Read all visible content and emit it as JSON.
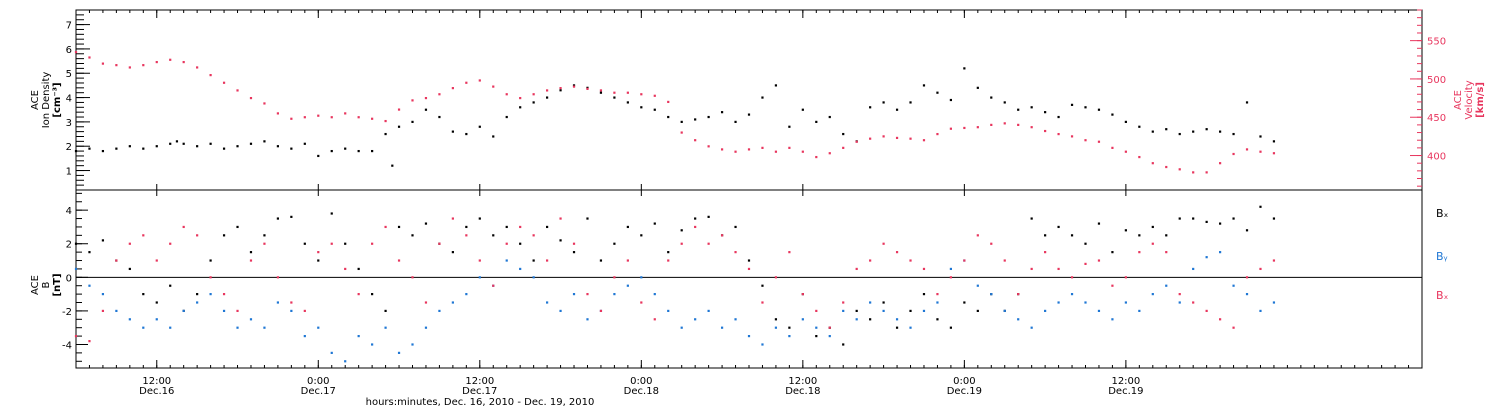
{
  "colors": {
    "axis": "#000000",
    "velocity": "#e8365e",
    "bx": "#000000",
    "by": "#1f77d4",
    "bz": "#e8365e"
  },
  "chart_data": [
    {
      "type": "scatter",
      "panel": "top",
      "left_axis_label_lines": [
        "ACE",
        "Ion Density",
        "[cm⁻³]"
      ],
      "right_axis_label_lines": [
        "ACE",
        "Velocity",
        "[km/s]"
      ],
      "left_ylim": [
        0.2,
        7.6
      ],
      "left_yticks": [
        1,
        2,
        3,
        4,
        5,
        6,
        7
      ],
      "right_ylim": [
        355,
        590
      ],
      "right_yticks": [
        400,
        450,
        500,
        550
      ],
      "grid": false,
      "series": [
        {
          "name": "Ion Density",
          "axis": "left",
          "color_key": "axis",
          "x": [
            0,
            1,
            2,
            3,
            4,
            5,
            6,
            7,
            7.5,
            8,
            9,
            10,
            11,
            12,
            13,
            14,
            15,
            16,
            17,
            18,
            19,
            20,
            21,
            22,
            23,
            23.5,
            24,
            25,
            26,
            27,
            28,
            29,
            30,
            31,
            32,
            33,
            34,
            35,
            36,
            37,
            38,
            39,
            40,
            41,
            42,
            43,
            44,
            45,
            46,
            47,
            48,
            49,
            50,
            51,
            52,
            53,
            54,
            55,
            56,
            57,
            58,
            59,
            60,
            61,
            62,
            63,
            64,
            65,
            66,
            67,
            68,
            69,
            70,
            71,
            72,
            73,
            74,
            75,
            76,
            77,
            78,
            79,
            80,
            81,
            82,
            83,
            84,
            85,
            86,
            87,
            88,
            89
          ],
          "y": [
            1.8,
            1.9,
            1.8,
            1.9,
            2.0,
            1.9,
            2.0,
            2.1,
            2.2,
            2.1,
            2.0,
            2.1,
            1.9,
            2.0,
            2.1,
            2.2,
            2.0,
            1.9,
            2.1,
            1.6,
            1.8,
            1.9,
            1.8,
            1.8,
            2.5,
            1.2,
            2.8,
            3.0,
            3.5,
            3.2,
            2.6,
            2.5,
            2.8,
            2.4,
            3.2,
            3.6,
            3.8,
            4.0,
            4.3,
            4.5,
            4.4,
            4.2,
            4.0,
            3.8,
            3.6,
            3.5,
            3.2,
            3.0,
            3.1,
            3.2,
            3.4,
            3.0,
            3.3,
            4.0,
            4.5,
            2.8,
            3.5,
            3.0,
            3.2,
            2.5,
            2.2,
            3.6,
            3.8,
            3.5,
            3.8,
            4.5,
            4.2,
            3.9,
            5.2,
            4.4,
            4.0,
            3.8,
            3.5,
            3.6,
            3.4,
            3.2,
            3.7,
            3.6,
            3.5,
            3.3,
            3.0,
            2.8,
            2.6,
            2.7,
            2.5,
            2.6,
            2.7,
            2.6,
            2.5,
            3.8,
            2.4,
            2.2
          ]
        },
        {
          "name": "Velocity",
          "axis": "right",
          "color_key": "velocity",
          "x": [
            0,
            1,
            2,
            3,
            4,
            5,
            6,
            7,
            8,
            9,
            10,
            11,
            12,
            13,
            14,
            15,
            16,
            17,
            18,
            19,
            20,
            21,
            22,
            23,
            24,
            25,
            26,
            27,
            28,
            29,
            30,
            31,
            32,
            33,
            34,
            35,
            36,
            37,
            38,
            39,
            40,
            41,
            42,
            43,
            44,
            45,
            46,
            47,
            48,
            49,
            50,
            51,
            52,
            53,
            54,
            55,
            56,
            57,
            58,
            59,
            60,
            61,
            62,
            63,
            64,
            65,
            66,
            67,
            68,
            69,
            70,
            71,
            72,
            73,
            74,
            75,
            76,
            77,
            78,
            79,
            80,
            81,
            82,
            83,
            84,
            85,
            86,
            87,
            88,
            89
          ],
          "y": [
            535,
            528,
            520,
            518,
            515,
            518,
            522,
            525,
            522,
            515,
            505,
            495,
            485,
            475,
            468,
            455,
            448,
            450,
            452,
            450,
            455,
            450,
            448,
            445,
            460,
            472,
            475,
            480,
            488,
            495,
            498,
            490,
            480,
            475,
            480,
            485,
            488,
            490,
            487,
            485,
            482,
            482,
            480,
            478,
            470,
            430,
            420,
            412,
            408,
            405,
            408,
            410,
            405,
            410,
            405,
            398,
            403,
            410,
            418,
            422,
            425,
            423,
            422,
            420,
            428,
            435,
            436,
            437,
            440,
            442,
            440,
            437,
            432,
            428,
            425,
            420,
            418,
            410,
            405,
            398,
            390,
            385,
            382,
            378,
            378,
            390,
            402,
            408,
            405,
            403
          ]
        }
      ]
    },
    {
      "type": "scatter",
      "panel": "bottom",
      "left_axis_label_lines": [
        "ACE",
        "B",
        "[nT]"
      ],
      "ylim": [
        -5.4,
        5.2
      ],
      "yticks": [
        -4,
        -2,
        0,
        2,
        4
      ],
      "zero_line": true,
      "legend_position": "right",
      "grid": false,
      "series": [
        {
          "name": "Bₓ",
          "color_key": "bx",
          "x": [
            0,
            1,
            2,
            3,
            4,
            5,
            6,
            7,
            8,
            9,
            10,
            11,
            12,
            13,
            14,
            15,
            16,
            17,
            18,
            19,
            20,
            21,
            22,
            23,
            24,
            25,
            26,
            27,
            28,
            29,
            30,
            31,
            32,
            33,
            34,
            35,
            36,
            37,
            38,
            39,
            40,
            41,
            42,
            43,
            44,
            45,
            46,
            47,
            48,
            49,
            50,
            51,
            52,
            53,
            54,
            55,
            56,
            57,
            58,
            59,
            60,
            61,
            62,
            63,
            64,
            65,
            66,
            67,
            68,
            69,
            70,
            71,
            72,
            73,
            74,
            75,
            76,
            77,
            78,
            79,
            80,
            81,
            82,
            83,
            84,
            85,
            86,
            87,
            88,
            89
          ],
          "y": [
            2.0,
            1.5,
            2.2,
            1.0,
            0.5,
            -1.0,
            -1.5,
            -0.5,
            -2.0,
            -1.0,
            1.0,
            2.5,
            3.0,
            1.5,
            2.5,
            3.5,
            3.6,
            2.0,
            1.0,
            3.8,
            2.0,
            0.5,
            -1.0,
            -2.0,
            3.0,
            2.5,
            3.2,
            2.0,
            1.5,
            3.0,
            3.5,
            2.5,
            3.0,
            2.0,
            1.0,
            3.0,
            2.2,
            1.5,
            3.5,
            1.0,
            2.0,
            3.0,
            2.5,
            3.2,
            1.5,
            2.8,
            3.5,
            3.6,
            2.5,
            3.0,
            1.0,
            -0.5,
            -2.5,
            -3.0,
            -1.0,
            -3.5,
            -3.0,
            -4.0,
            -2.0,
            -2.5,
            -1.5,
            -3.0,
            -2.0,
            -1.0,
            -2.5,
            -3.0,
            -1.5,
            -2.0,
            -1.0,
            -2.0,
            -1.0,
            3.5,
            2.5,
            3.0,
            2.5,
            2.0,
            3.2,
            1.5,
            2.8,
            2.5,
            3.0,
            2.5,
            3.5,
            3.5,
            3.3,
            3.2,
            3.5,
            2.8,
            4.2,
            3.5
          ]
        },
        {
          "name": "Bᵧ",
          "color_key": "by",
          "x": [
            0,
            1,
            2,
            3,
            4,
            5,
            6,
            7,
            8,
            9,
            10,
            11,
            12,
            13,
            14,
            15,
            16,
            17,
            18,
            19,
            20,
            21,
            22,
            23,
            24,
            25,
            26,
            27,
            28,
            29,
            30,
            31,
            32,
            33,
            34,
            35,
            36,
            37,
            38,
            39,
            40,
            41,
            42,
            43,
            44,
            45,
            46,
            47,
            48,
            49,
            50,
            51,
            52,
            53,
            54,
            55,
            56,
            57,
            58,
            59,
            60,
            61,
            62,
            63,
            64,
            65,
            66,
            67,
            68,
            69,
            70,
            71,
            72,
            73,
            74,
            75,
            76,
            77,
            78,
            79,
            80,
            81,
            82,
            83,
            84,
            85,
            86,
            87,
            88,
            89
          ],
          "y": [
            0.5,
            -0.5,
            -1.0,
            -2.0,
            -2.5,
            -3.0,
            -2.5,
            -3.0,
            -2.0,
            -1.5,
            -1.0,
            -2.0,
            -3.0,
            -2.5,
            -3.0,
            -1.5,
            -2.0,
            -3.5,
            -3.0,
            -4.5,
            -5.0,
            -3.5,
            -4.0,
            -3.0,
            -4.5,
            -4.0,
            -3.0,
            -2.0,
            -1.5,
            -1.0,
            0.0,
            -0.5,
            1.0,
            0.5,
            0.0,
            -1.5,
            -2.0,
            -1.0,
            -2.5,
            -2.0,
            -1.0,
            -0.5,
            0.0,
            -1.0,
            -2.0,
            -3.0,
            -2.5,
            -2.0,
            -3.0,
            -2.5,
            -3.5,
            -4.0,
            -3.0,
            -3.5,
            -2.5,
            -3.0,
            -3.5,
            -2.0,
            -2.5,
            -1.5,
            -2.0,
            -2.5,
            -3.0,
            -2.0,
            -1.5,
            0.5,
            1.0,
            -0.5,
            -1.0,
            -2.0,
            -2.5,
            -3.0,
            -2.0,
            -1.5,
            -1.0,
            -1.5,
            -2.0,
            -2.5,
            -1.5,
            -2.0,
            -1.0,
            -0.5,
            -1.5,
            0.5,
            1.2,
            1.5,
            -0.5,
            -1.0,
            -2.0,
            -1.5
          ]
        },
        {
          "name": "Bₓ",
          "color_key": "bz",
          "x": [
            0,
            1,
            2,
            3,
            4,
            5,
            6,
            7,
            8,
            9,
            10,
            11,
            12,
            13,
            14,
            15,
            16,
            17,
            18,
            19,
            20,
            21,
            22,
            23,
            24,
            25,
            26,
            27,
            28,
            29,
            30,
            31,
            32,
            33,
            34,
            35,
            36,
            37,
            38,
            39,
            40,
            41,
            42,
            43,
            44,
            45,
            46,
            47,
            48,
            49,
            50,
            51,
            52,
            53,
            54,
            55,
            56,
            57,
            58,
            59,
            60,
            61,
            62,
            63,
            64,
            65,
            66,
            67,
            68,
            69,
            70,
            71,
            72,
            73,
            74,
            75,
            76,
            77,
            78,
            79,
            80,
            81,
            82,
            83,
            84,
            85,
            86,
            87,
            88,
            89
          ],
          "y": [
            -3.5,
            -3.8,
            -2.0,
            1.0,
            2.0,
            2.5,
            1.0,
            2.0,
            3.0,
            2.5,
            0.0,
            -1.0,
            -2.0,
            1.0,
            2.0,
            0.0,
            -1.5,
            -2.0,
            1.5,
            2.0,
            0.5,
            -1.0,
            2.0,
            3.0,
            1.0,
            0.0,
            -1.5,
            2.0,
            3.5,
            2.5,
            1.0,
            -0.5,
            2.0,
            3.0,
            2.5,
            1.0,
            3.5,
            2.0,
            -1.0,
            -2.0,
            0.0,
            1.0,
            -1.5,
            -2.5,
            1.0,
            2.0,
            3.0,
            2.0,
            2.5,
            1.5,
            0.5,
            -1.5,
            0.0,
            1.5,
            -1.0,
            -2.0,
            -3.0,
            -1.5,
            0.5,
            1.0,
            2.0,
            1.5,
            1.0,
            0.5,
            -1.0,
            0.0,
            1.0,
            2.5,
            2.0,
            1.0,
            -1.0,
            0.5,
            1.5,
            0.5,
            0.0,
            0.8,
            1.0,
            -0.5,
            0.0,
            1.5,
            2.0,
            1.5,
            -1.0,
            -1.5,
            -2.0,
            -2.5,
            -3.0,
            0.0,
            0.5,
            1.0
          ]
        }
      ]
    }
  ],
  "x_axis": {
    "xlim": [
      0,
      100
    ],
    "ticks": [
      {
        "x": 6,
        "time": "12:00",
        "date": "Dec.16"
      },
      {
        "x": 18,
        "time": "0:00",
        "date": "Dec.17"
      },
      {
        "x": 30,
        "time": "12:00",
        "date": "Dec.17"
      },
      {
        "x": 42,
        "time": "0:00",
        "date": "Dec.18"
      },
      {
        "x": 54,
        "time": "12:00",
        "date": "Dec.18"
      },
      {
        "x": 66,
        "time": "0:00",
        "date": "Dec.19"
      },
      {
        "x": 78,
        "time": "12:00",
        "date": "Dec.19"
      }
    ],
    "title": "hours:minutes, Dec. 16, 2010 - Dec. 19, 2010"
  },
  "legend": {
    "bx": "Bₓ",
    "by": "Bᵧ",
    "bz": "Bₓ"
  }
}
